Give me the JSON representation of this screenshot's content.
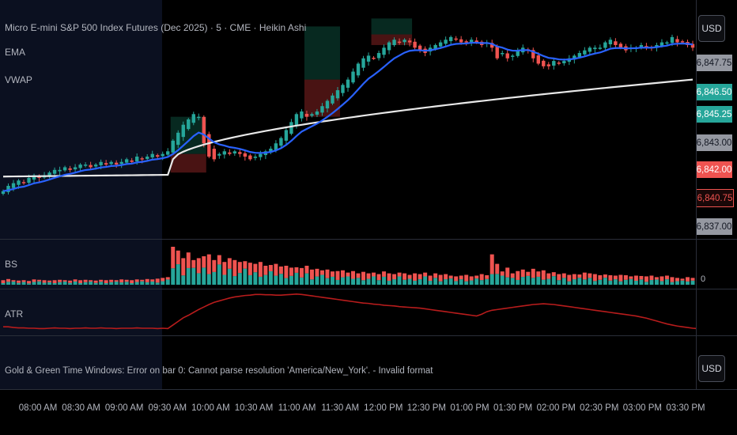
{
  "main": {
    "title": "Micro E-mini S&P 500 Index Futures (Dec 2025) · 5 · CME · Heikin Ashi",
    "indicators": [
      "EMA",
      "VWAP"
    ]
  },
  "price_scale": {
    "currency_button": "USD",
    "tags": [
      {
        "text": "6,847.75",
        "bg": "#9598a1",
        "fg": "#131722"
      },
      {
        "text": "6,846.50",
        "bg": "#26a69a",
        "fg": "#ffffff"
      },
      {
        "text": "6,845.25",
        "bg": "#26a69a",
        "fg": "#ffffff"
      },
      {
        "text": "6,843.00",
        "bg": "#9598a1",
        "fg": "#131722"
      },
      {
        "text": "6,842.00",
        "bg": "#ef5350",
        "fg": "#ffffff"
      },
      {
        "text": "6,840.75",
        "bg": "#1a0808",
        "fg": "#ef5350"
      },
      {
        "text": "6,837.00",
        "bg": "#9598a1",
        "fg": "#131722"
      }
    ]
  },
  "panes": {
    "bs": {
      "label": "BS",
      "scale_value": "0"
    },
    "atr": {
      "label": "ATR"
    },
    "gold": {
      "label": "Gold & Green Time Windows: Error on bar 0: Cannot parse resolution 'America/New_York'. - Invalid format",
      "currency_button": "USD"
    }
  },
  "time_axis": [
    "08:00 AM",
    "08:30 AM",
    "09:00 AM",
    "09:30 AM",
    "10:00 AM",
    "10:30 AM",
    "11:00 AM",
    "11:30 AM",
    "12:00 PM",
    "12:30 PM",
    "01:00 PM",
    "01:30 PM",
    "02:00 PM",
    "02:30 PM",
    "03:00 PM",
    "03:30 PM"
  ],
  "colors": {
    "up": "#26a69a",
    "down": "#ef5350",
    "ema": "#2962ff",
    "vwap": "#e8e8e8",
    "atr": "#b71c1c",
    "premarket_bg": "#0b1020"
  },
  "chart_data": {
    "type": "candlestick",
    "style": "Heikin Ashi",
    "closes": [
      6810,
      6812,
      6813,
      6814,
      6813,
      6815,
      6816,
      6815,
      6816,
      6817,
      6818,
      6818,
      6819,
      6818,
      6819,
      6820,
      6820,
      6819,
      6820,
      6821,
      6820,
      6821,
      6820,
      6821,
      6822,
      6821,
      6823,
      6822,
      6823,
      6824,
      6823,
      6824,
      6825,
      6829,
      6832,
      6835,
      6837,
      6839,
      6838,
      6828,
      6823,
      6822,
      6824,
      6825,
      6824,
      6825,
      6824,
      6823,
      6822,
      6823,
      6824,
      6825,
      6826,
      6828,
      6830,
      6833,
      6836,
      6839,
      6840,
      6838,
      6839,
      6840,
      6842,
      6844,
      6846,
      6848,
      6850,
      6852,
      6855,
      6858,
      6860,
      6861,
      6860,
      6862,
      6864,
      6866,
      6867,
      6866,
      6867,
      6866,
      6864,
      6863,
      6862,
      6864,
      6865,
      6866,
      6867,
      6868,
      6867,
      6866,
      6866,
      6867,
      6866,
      6865,
      6866,
      6864,
      6860,
      6862,
      6860,
      6861,
      6863,
      6864,
      6863,
      6860,
      6858,
      6857,
      6857,
      6859,
      6858,
      6859,
      6860,
      6861,
      6862,
      6863,
      6864,
      6864,
      6864,
      6866,
      6867,
      6865,
      6864,
      6863,
      6864,
      6864,
      6865,
      6864,
      6864,
      6865,
      6866,
      6866,
      6868,
      6866,
      6866,
      6865,
      6864
    ],
    "atr": [
      0.4,
      0.4,
      0.38,
      0.37,
      0.37,
      0.36,
      0.36,
      0.35,
      0.35,
      0.36,
      0.37,
      0.36,
      0.36,
      0.35,
      0.36,
      0.36,
      0.37,
      0.36,
      0.36,
      0.37,
      0.36,
      0.36,
      0.35,
      0.36,
      0.36,
      0.36,
      0.37,
      0.36,
      0.36,
      0.36,
      0.35,
      0.36,
      0.35,
      0.45,
      0.55,
      0.65,
      0.72,
      0.8,
      0.88,
      0.95,
      1.02,
      1.08,
      1.12,
      1.16,
      1.2,
      1.23,
      1.25,
      1.27,
      1.28,
      1.3,
      1.3,
      1.29,
      1.29,
      1.28,
      1.28,
      1.29,
      1.3,
      1.31,
      1.3,
      1.28,
      1.26,
      1.24,
      1.22,
      1.2,
      1.18,
      1.16,
      1.14,
      1.12,
      1.1,
      1.08,
      1.06,
      1.05,
      1.03,
      1.02,
      1.0,
      0.99,
      0.98,
      0.96,
      0.95,
      0.94,
      0.93,
      0.92,
      0.9,
      0.88,
      0.86,
      0.84,
      0.82,
      0.8,
      0.78,
      0.76,
      0.74,
      0.72,
      0.7,
      0.75,
      0.82,
      0.86,
      0.88,
      0.9,
      0.92,
      0.94,
      0.96,
      0.98,
      1.0,
      1.02,
      1.03,
      1.04,
      1.03,
      1.02,
      1.0,
      0.98,
      0.96,
      0.94,
      0.92,
      0.9,
      0.88,
      0.86,
      0.84,
      0.82,
      0.8,
      0.78,
      0.76,
      0.74,
      0.72,
      0.7,
      0.67,
      0.64,
      0.6,
      0.56,
      0.52,
      0.48,
      0.45,
      0.42,
      0.4,
      0.38,
      0.36,
      0.35
    ],
    "volume": [
      0.12,
      0.15,
      0.12,
      0.11,
      0.12,
      0.1,
      0.14,
      0.13,
      0.12,
      0.11,
      0.12,
      0.13,
      0.12,
      0.11,
      0.14,
      0.12,
      0.13,
      0.12,
      0.11,
      0.13,
      0.12,
      0.13,
      0.12,
      0.14,
      0.13,
      0.12,
      0.14,
      0.13,
      0.15,
      0.14,
      0.16,
      0.18,
      0.2,
      1.0,
      0.9,
      0.7,
      0.85,
      0.65,
      0.7,
      0.75,
      0.8,
      0.65,
      0.78,
      0.6,
      0.7,
      0.65,
      0.6,
      0.62,
      0.58,
      0.55,
      0.6,
      0.5,
      0.52,
      0.55,
      0.48,
      0.5,
      0.45,
      0.46,
      0.44,
      0.5,
      0.4,
      0.42,
      0.38,
      0.4,
      0.35,
      0.36,
      0.38,
      0.32,
      0.36,
      0.3,
      0.34,
      0.3,
      0.32,
      0.28,
      0.35,
      0.3,
      0.28,
      0.32,
      0.3,
      0.26,
      0.3,
      0.28,
      0.32,
      0.24,
      0.3,
      0.26,
      0.28,
      0.24,
      0.22,
      0.24,
      0.26,
      0.22,
      0.24,
      0.28,
      0.25,
      0.8,
      0.55,
      0.35,
      0.45,
      0.3,
      0.36,
      0.4,
      0.34,
      0.42,
      0.35,
      0.38,
      0.3,
      0.33,
      0.28,
      0.3,
      0.26,
      0.28,
      0.27,
      0.32,
      0.3,
      0.28,
      0.25,
      0.27,
      0.25,
      0.24,
      0.26,
      0.25,
      0.22,
      0.24,
      0.23,
      0.22,
      0.24,
      0.2,
      0.22,
      0.24,
      0.2,
      0.18,
      0.16,
      0.2,
      0.18
    ]
  }
}
